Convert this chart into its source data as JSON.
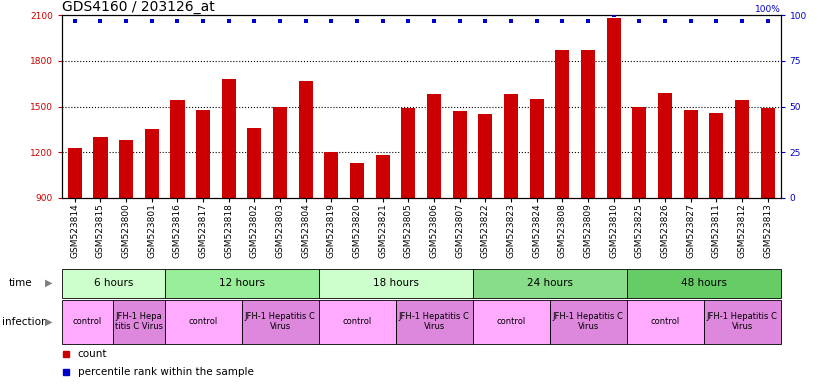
{
  "title": "GDS4160 / 203126_at",
  "samples": [
    "GSM523814",
    "GSM523815",
    "GSM523800",
    "GSM523801",
    "GSM523816",
    "GSM523817",
    "GSM523818",
    "GSM523802",
    "GSM523803",
    "GSM523804",
    "GSM523819",
    "GSM523820",
    "GSM523821",
    "GSM523805",
    "GSM523806",
    "GSM523807",
    "GSM523822",
    "GSM523823",
    "GSM523824",
    "GSM523808",
    "GSM523809",
    "GSM523810",
    "GSM523825",
    "GSM523826",
    "GSM523827",
    "GSM523811",
    "GSM523812",
    "GSM523813"
  ],
  "counts": [
    1230,
    1300,
    1280,
    1350,
    1540,
    1480,
    1680,
    1360,
    1500,
    1670,
    1200,
    1130,
    1180,
    1490,
    1580,
    1470,
    1450,
    1580,
    1550,
    1870,
    1870,
    2080,
    1500,
    1590,
    1480,
    1460,
    1540,
    1490
  ],
  "percentile_ranks": [
    97,
    97,
    97,
    97,
    97,
    97,
    97,
    97,
    97,
    97,
    97,
    97,
    97,
    97,
    97,
    97,
    97,
    97,
    97,
    97,
    97,
    100,
    97,
    97,
    97,
    97,
    97,
    97
  ],
  "ylim_left": [
    900,
    2100
  ],
  "yticks_left": [
    900,
    1200,
    1500,
    1800,
    2100
  ],
  "ylim_right": [
    0,
    100
  ],
  "yticks_right": [
    0,
    25,
    50,
    75,
    100
  ],
  "bar_color": "#cc0000",
  "dot_color": "#0000cc",
  "grid_color": "#000000",
  "bg_color": "#ffffff",
  "time_groups": [
    {
      "label": "6 hours",
      "start": 0,
      "end": 4,
      "color": "#ccffcc"
    },
    {
      "label": "12 hours",
      "start": 4,
      "end": 10,
      "color": "#99ee99"
    },
    {
      "label": "18 hours",
      "start": 10,
      "end": 16,
      "color": "#ccffcc"
    },
    {
      "label": "24 hours",
      "start": 16,
      "end": 22,
      "color": "#88dd88"
    },
    {
      "label": "48 hours",
      "start": 22,
      "end": 28,
      "color": "#66cc66"
    }
  ],
  "infection_groups": [
    {
      "label": "control",
      "start": 0,
      "end": 2,
      "color": "#ffaaff"
    },
    {
      "label": "JFH-1 Hepa\ntitis C Virus",
      "start": 2,
      "end": 4,
      "color": "#dd88dd"
    },
    {
      "label": "control",
      "start": 4,
      "end": 7,
      "color": "#ffaaff"
    },
    {
      "label": "JFH-1 Hepatitis C\nVirus",
      "start": 7,
      "end": 10,
      "color": "#dd88dd"
    },
    {
      "label": "control",
      "start": 10,
      "end": 13,
      "color": "#ffaaff"
    },
    {
      "label": "JFH-1 Hepatitis C\nVirus",
      "start": 13,
      "end": 16,
      "color": "#dd88dd"
    },
    {
      "label": "control",
      "start": 16,
      "end": 19,
      "color": "#ffaaff"
    },
    {
      "label": "JFH-1 Hepatitis C\nVirus",
      "start": 19,
      "end": 22,
      "color": "#dd88dd"
    },
    {
      "label": "control",
      "start": 22,
      "end": 25,
      "color": "#ffaaff"
    },
    {
      "label": "JFH-1 Hepatitis C\nVirus",
      "start": 25,
      "end": 28,
      "color": "#dd88dd"
    }
  ],
  "left_axis_color": "#cc0000",
  "right_axis_color": "#0000cc",
  "title_fontsize": 10,
  "tick_fontsize": 6.5,
  "label_fontsize": 7.5,
  "row_label_fontsize": 7.5,
  "legend_fontsize": 7.5,
  "n_samples": 28
}
